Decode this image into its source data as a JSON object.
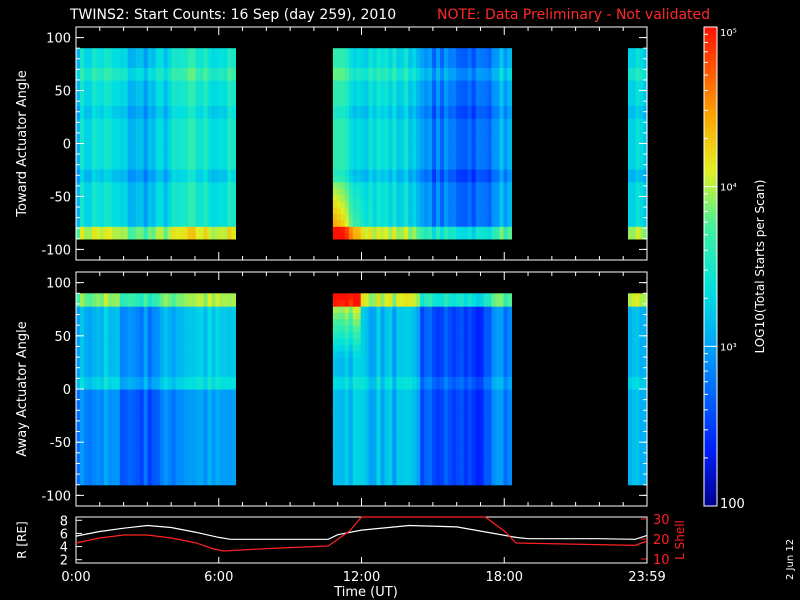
{
  "figure": {
    "title": "TWINS2: Start Counts: 16 Sep (day 259), 2010",
    "note": "NOTE: Data Preliminary - Not validated",
    "note_color": "#ff2020",
    "date_stamp": "2 Jun 12"
  },
  "colorbar": {
    "label": "LOG10(Total Starts per Scan)",
    "tick_labels": [
      "100",
      "10³",
      "10⁴",
      "10⁵"
    ],
    "scale": "log",
    "range": [
      100,
      100000
    ]
  },
  "chart_data": [
    {
      "type": "heatmap",
      "ylabel": "Toward Actuator Angle",
      "ylim": [
        -110,
        110
      ],
      "yticks": [
        "100",
        "50",
        "0",
        "-50",
        "-100"
      ],
      "x_range_hours": [
        0,
        24
      ],
      "data_intervals_hours": [
        [
          0,
          6.7
        ],
        [
          10.8,
          18.3
        ],
        [
          23.2,
          24
        ]
      ],
      "scan_angle_range": [
        -90,
        90
      ]
    },
    {
      "type": "heatmap",
      "ylabel": "Away Actuator Angle",
      "ylim": [
        -110,
        110
      ],
      "yticks": [
        "100",
        "50",
        "0",
        "-50",
        "-100"
      ],
      "x_range_hours": [
        0,
        24
      ],
      "data_intervals_hours": [
        [
          0,
          6.7
        ],
        [
          10.8,
          18.3
        ],
        [
          23.2,
          24
        ]
      ],
      "scan_angle_range": [
        -90,
        90
      ]
    },
    {
      "type": "line",
      "xlabel": "Time (UT)",
      "xticks": [
        "0:00",
        "6:00",
        "12:00",
        "18:00",
        "23:59"
      ],
      "ylabel_left": "R [RE]",
      "ylabel_right": "L Shell",
      "yticks_left": [
        "8",
        "6",
        "4",
        "2"
      ],
      "yticks_right": [
        "30",
        "20",
        "10"
      ],
      "ylim_left": [
        1.5,
        8.5
      ],
      "ylim_right": [
        8,
        31
      ],
      "series": [
        {
          "name": "R [RE]",
          "color": "#ffffff",
          "x": [
            0,
            1,
            2,
            3,
            4,
            5,
            6,
            6.5,
            10.6,
            11,
            12,
            14,
            16,
            18.5,
            19,
            22,
            23.5,
            24
          ],
          "y": [
            5.6,
            6.3,
            6.8,
            7.2,
            6.9,
            6.2,
            5.4,
            5.1,
            5.1,
            5.8,
            6.5,
            7.2,
            7.0,
            5.4,
            5.2,
            5.2,
            5.1,
            5.7
          ]
        },
        {
          "name": "L Shell",
          "color": "#ff2020",
          "x": [
            0,
            1,
            2,
            3,
            4,
            5,
            5.8,
            6.2,
            8,
            10.6,
            11.5,
            12,
            12.1,
            17.2,
            18,
            18.5,
            23.5,
            24
          ],
          "y": [
            18,
            20.5,
            22,
            22,
            20.5,
            18.2,
            15,
            14,
            15.2,
            16.5,
            24,
            31,
            31,
            31,
            24,
            18,
            16.8,
            19
          ]
        }
      ]
    }
  ]
}
